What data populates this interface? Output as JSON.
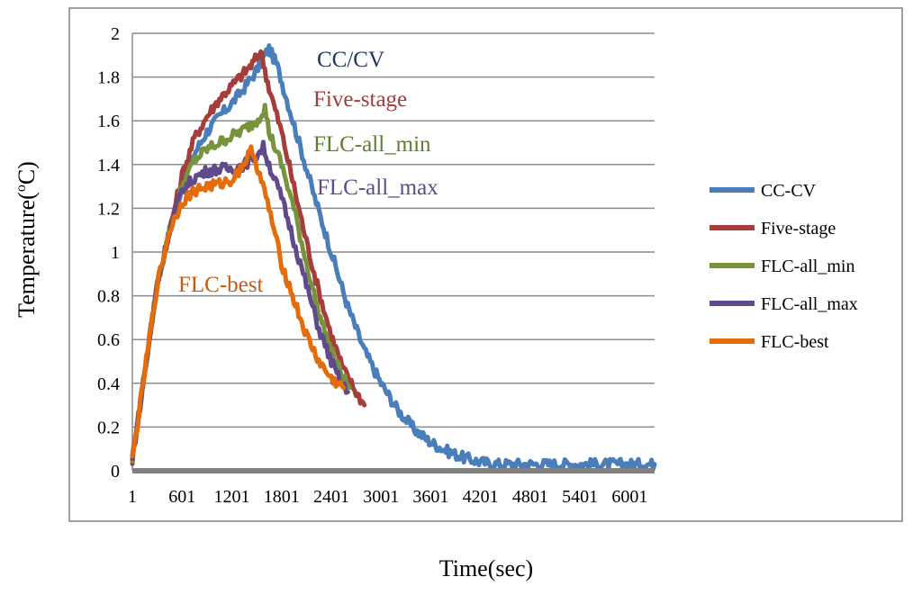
{
  "chart_data": {
    "type": "line",
    "title": "",
    "xlabel": "Time(sec)",
    "ylabel_main": "Temperature(",
    "ylabel_sup": "o",
    "ylabel_end": "C)",
    "xlim": [
      1,
      6301
    ],
    "ylim": [
      0,
      2
    ],
    "grid": true,
    "legend_position": "right",
    "x_ticks": [
      {
        "value": 1,
        "label": "1"
      },
      {
        "value": 601,
        "label": "601"
      },
      {
        "value": 1201,
        "label": "1201"
      },
      {
        "value": 1801,
        "label": "1801"
      },
      {
        "value": 2401,
        "label": "2401"
      },
      {
        "value": 3001,
        "label": "3001"
      },
      {
        "value": 3601,
        "label": "3601"
      },
      {
        "value": 4201,
        "label": "4201"
      },
      {
        "value": 4801,
        "label": "4801"
      },
      {
        "value": 5401,
        "label": "5401"
      },
      {
        "value": 6001,
        "label": "6001"
      }
    ],
    "y_ticks": [
      {
        "value": 0,
        "label": "0"
      },
      {
        "value": 0.2,
        "label": "0.2"
      },
      {
        "value": 0.4,
        "label": "0.4"
      },
      {
        "value": 0.6,
        "label": "0.6"
      },
      {
        "value": 0.8,
        "label": "0.8"
      },
      {
        "value": 1.0,
        "label": "1"
      },
      {
        "value": 1.2,
        "label": "1.2"
      },
      {
        "value": 1.4,
        "label": "1.4"
      },
      {
        "value": 1.6,
        "label": "1.6"
      },
      {
        "value": 1.8,
        "label": "1.8"
      },
      {
        "value": 2.0,
        "label": "2"
      }
    ],
    "series": [
      {
        "name": "CC-CV",
        "color": "#4a7ebb",
        "x": [
          1,
          150,
          300,
          450,
          600,
          750,
          900,
          1050,
          1200,
          1350,
          1500,
          1600,
          1650,
          1750,
          1900,
          2050,
          2200,
          2400,
          2600,
          2800,
          3000,
          3200,
          3400,
          3600,
          3800,
          4000,
          4200,
          4400,
          4800,
          5200,
          5600,
          6000,
          6301
        ],
        "y": [
          0.05,
          0.45,
          0.85,
          1.1,
          1.3,
          1.45,
          1.55,
          1.62,
          1.68,
          1.75,
          1.83,
          1.9,
          1.93,
          1.85,
          1.65,
          1.45,
          1.25,
          1.0,
          0.75,
          0.55,
          0.4,
          0.28,
          0.19,
          0.13,
          0.09,
          0.06,
          0.04,
          0.03,
          0.03,
          0.03,
          0.03,
          0.03,
          0.03
        ]
      },
      {
        "name": "Five-stage",
        "color": "#a63d3a",
        "x": [
          1,
          150,
          300,
          450,
          600,
          750,
          900,
          1050,
          1200,
          1350,
          1450,
          1550,
          1650,
          1800,
          1950,
          2100,
          2250,
          2400,
          2550,
          2700,
          2800
        ],
        "y": [
          0.05,
          0.45,
          0.85,
          1.1,
          1.35,
          1.52,
          1.62,
          1.7,
          1.76,
          1.82,
          1.86,
          1.92,
          1.75,
          1.55,
          1.3,
          1.05,
          0.82,
          0.62,
          0.46,
          0.36,
          0.3
        ]
      },
      {
        "name": "FLC-all_min",
        "color": "#77933c",
        "x": [
          1,
          150,
          300,
          450,
          600,
          750,
          900,
          1050,
          1200,
          1350,
          1500,
          1600,
          1650,
          1800,
          1950,
          2100,
          2250,
          2400,
          2550,
          2620
        ],
        "y": [
          0.05,
          0.45,
          0.85,
          1.1,
          1.3,
          1.42,
          1.47,
          1.5,
          1.53,
          1.56,
          1.6,
          1.66,
          1.55,
          1.4,
          1.2,
          0.95,
          0.72,
          0.55,
          0.42,
          0.38
        ]
      },
      {
        "name": "FLC-all_max",
        "color": "#5f4a8b",
        "x": [
          1,
          150,
          300,
          450,
          600,
          750,
          900,
          1050,
          1200,
          1350,
          1500,
          1580,
          1650,
          1800,
          1950,
          2100,
          2250,
          2400,
          2520,
          2600
        ],
        "y": [
          0.05,
          0.45,
          0.85,
          1.1,
          1.28,
          1.34,
          1.37,
          1.38,
          1.38,
          1.4,
          1.44,
          1.48,
          1.4,
          1.25,
          1.05,
          0.85,
          0.65,
          0.5,
          0.4,
          0.36
        ]
      },
      {
        "name": "FLC-best",
        "color": "#e46c0a",
        "x": [
          1,
          150,
          300,
          450,
          600,
          750,
          900,
          1050,
          1200,
          1300,
          1400,
          1450,
          1500,
          1650,
          1800,
          1950,
          2100,
          2250,
          2400,
          2550
        ],
        "y": [
          0.05,
          0.45,
          0.85,
          1.1,
          1.23,
          1.28,
          1.3,
          1.31,
          1.33,
          1.38,
          1.44,
          1.47,
          1.4,
          1.2,
          0.95,
          0.78,
          0.62,
          0.5,
          0.42,
          0.38
        ]
      }
    ],
    "annotations": [
      {
        "text": "CC/CV",
        "color": "#1f3864"
      },
      {
        "text": "Five-stage",
        "color": "#a63d3a"
      },
      {
        "text": "FLC-all_min",
        "color": "#5e7d2e"
      },
      {
        "text": "FLC-all_max",
        "color": "#5f4a8b"
      },
      {
        "text": "FLC-best",
        "color": "#c55a11"
      }
    ]
  }
}
